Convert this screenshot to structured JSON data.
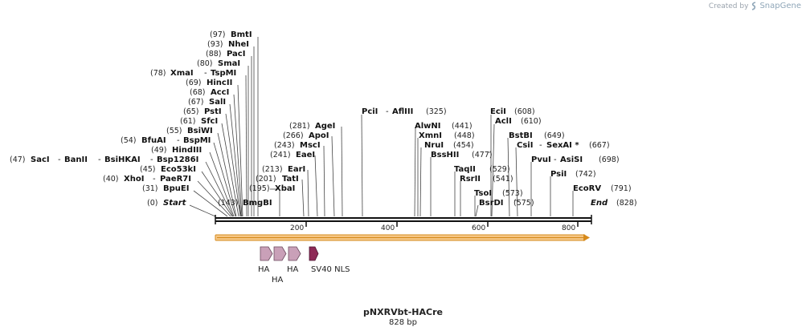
{
  "credit": {
    "prefix": "Created by",
    "brand": "SnapGene"
  },
  "map": {
    "name": "pNXRVbt-HACre",
    "length_label": "828 bp",
    "length": 828
  },
  "ruler_ticks": [
    {
      "label": "200",
      "pos": 200
    },
    {
      "label": "400",
      "pos": 400
    },
    {
      "label": "600",
      "pos": 600
    },
    {
      "label": "800",
      "pos": 800
    }
  ],
  "sites": [
    {
      "pos_label": "(97)",
      "name": "BmtI",
      "pos": 97
    },
    {
      "pos_label": "(93)",
      "name": "NheI",
      "pos": 93
    },
    {
      "pos_label": "(88)",
      "name": "PacI",
      "pos": 88
    },
    {
      "pos_label": "(80)",
      "name": "SmaI",
      "pos": 80
    },
    {
      "pos_label": "(78)",
      "name": "XmaI",
      "name2": "TspMI",
      "pos": 78
    },
    {
      "pos_label": "(69)",
      "name": "HincII",
      "pos": 69
    },
    {
      "pos_label": "(68)",
      "name": "AccI",
      "pos": 68
    },
    {
      "pos_label": "(67)",
      "name": "SalI",
      "pos": 67
    },
    {
      "pos_label": "(65)",
      "name": "PstI",
      "pos": 65
    },
    {
      "pos_label": "(61)",
      "name": "SfcI",
      "pos": 61
    },
    {
      "pos_label": "(55)",
      "name": "BsiWI",
      "pos": 55
    },
    {
      "pos_label": "(54)",
      "name": "BfuAI",
      "name2": "BspMI",
      "pos": 54
    },
    {
      "pos_label": "(49)",
      "name": "HindIII",
      "pos": 49
    },
    {
      "pos_label": "(47)",
      "name": "SacI",
      "name2": "BanII",
      "name3": "BsiHKAI",
      "name4": "Bsp1286I",
      "pos": 47
    },
    {
      "pos_label": "(45)",
      "name": "Eco53kI",
      "pos": 45
    },
    {
      "pos_label": "(40)",
      "name": "XhoI",
      "name2": "PaeR7I",
      "pos": 40
    },
    {
      "pos_label": "(31)",
      "name": "BpuEI",
      "pos": 31
    },
    {
      "pos_label": "(0)",
      "name": "Start",
      "pos": 0
    },
    {
      "pos_label": "(143)",
      "name": "BmgBI",
      "pos": 143
    },
    {
      "pos_label": "(195)",
      "name": "XbaI",
      "pos": 195
    },
    {
      "pos_label": "(201)",
      "name": "TatI",
      "pos": 201
    },
    {
      "pos_label": "(213)",
      "name": "EarI",
      "pos": 213
    },
    {
      "pos_label": "(241)",
      "name": "EaeI",
      "pos": 241
    },
    {
      "pos_label": "(243)",
      "name": "MscI",
      "pos": 243
    },
    {
      "pos_label": "(266)",
      "name": "ApoI",
      "pos": 266
    },
    {
      "pos_label": "(281)",
      "name": "AgeI",
      "pos": 281
    },
    {
      "pos_label": "(325)",
      "name": "PciI",
      "name2": "AflIII",
      "pos": 325
    },
    {
      "pos_label": "(441)",
      "name": "AlwNI",
      "pos": 441
    },
    {
      "pos_label": "(448)",
      "name": "XmnI",
      "pos": 448
    },
    {
      "pos_label": "(454)",
      "name": "NruI",
      "pos": 454
    },
    {
      "pos_label": "(477)",
      "name": "BssHII",
      "pos": 477
    },
    {
      "pos_label": "(529)",
      "name": "TaqII",
      "pos": 529
    },
    {
      "pos_label": "(541)",
      "name": "RsrII",
      "pos": 541
    },
    {
      "pos_label": "(573)",
      "name": "TsoI",
      "pos": 573
    },
    {
      "pos_label": "(575)",
      "name": "BsrDI",
      "pos": 575
    },
    {
      "pos_label": "(608)",
      "name": "EciI",
      "pos": 608
    },
    {
      "pos_label": "(610)",
      "name": "AclI",
      "pos": 610
    },
    {
      "pos_label": "(649)",
      "name": "BstBI",
      "pos": 649
    },
    {
      "pos_label": "(667)",
      "name": "CsiI",
      "name2": "SexAI *",
      "pos": 667
    },
    {
      "pos_label": "(698)",
      "name": "PvuI",
      "name2": "AsiSI",
      "pos": 698
    },
    {
      "pos_label": "(742)",
      "name": "PsiI",
      "pos": 742
    },
    {
      "pos_label": "(791)",
      "name": "EcoRV",
      "pos": 791
    },
    {
      "pos_label": "(828)",
      "name": "End",
      "pos": 828
    }
  ],
  "features": [
    {
      "label": "HA",
      "color": "#c9a0b8",
      "type": "HA"
    },
    {
      "label": "HA",
      "color": "#c9a0b8",
      "type": "HA"
    },
    {
      "label": "HA",
      "color": "#c9a0b8",
      "type": "HA"
    },
    {
      "label": "SV40 NLS",
      "color": "#8e2a57",
      "type": "NLS"
    }
  ],
  "colors": {
    "orf_fill": "#f7c98a",
    "orf_stroke": "#d68a1c",
    "nls": "#8e2a57",
    "ha": "#c9a0b8"
  }
}
